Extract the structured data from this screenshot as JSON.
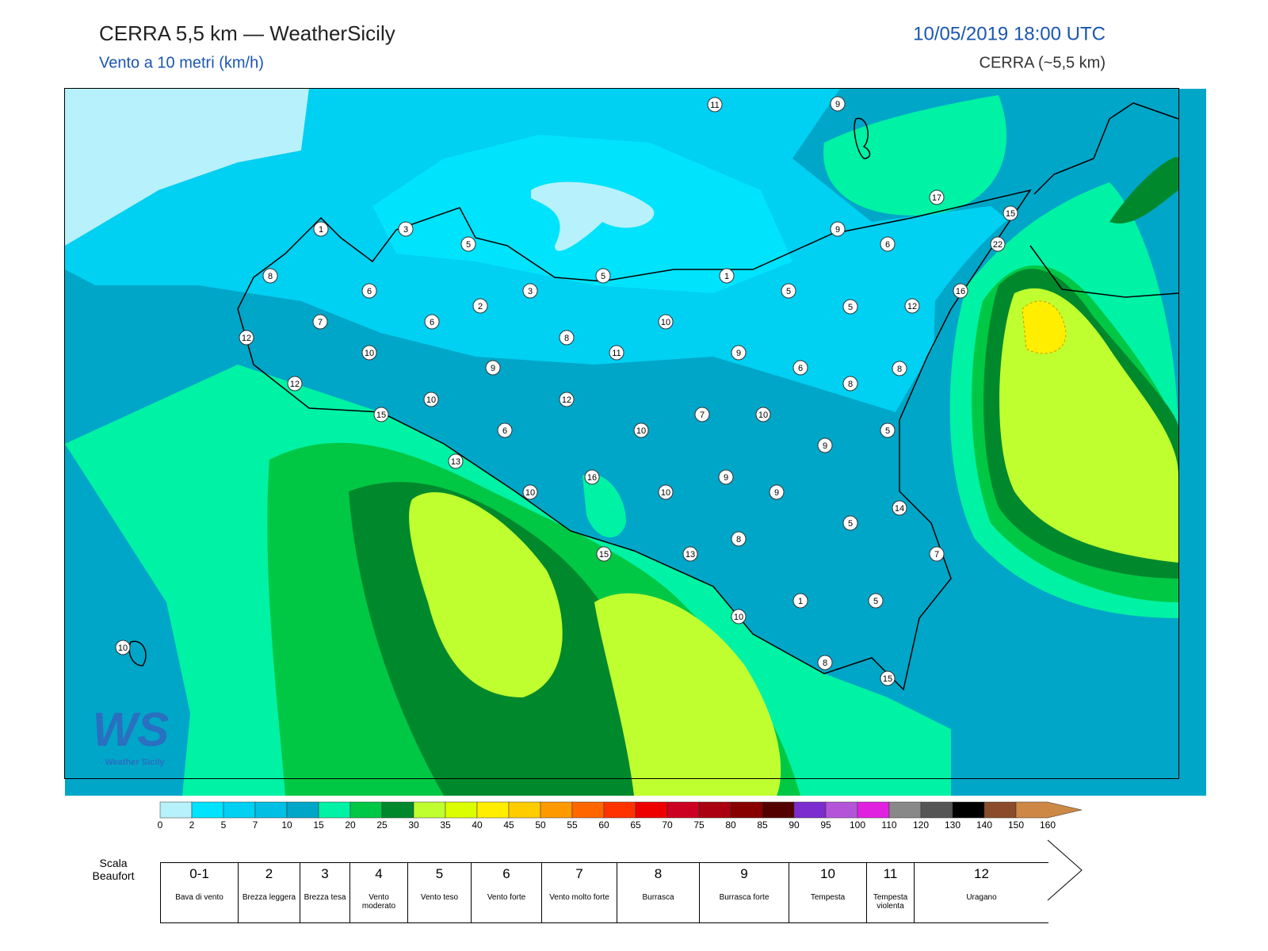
{
  "header": {
    "title": "CERRA 5,5 km — WeatherSicily",
    "subtitle": "Vento a 10 metri (km/h)",
    "date": "10/05/2019 18:00 UTC",
    "model": "CERRA (~5,5 km)"
  },
  "logo": {
    "mark": "WS",
    "text": "Weather Sicily"
  },
  "stations": [
    11,
    9,
    17,
    15,
    22,
    16,
    9,
    6,
    1,
    3,
    5,
    8,
    6,
    3,
    5,
    1,
    5,
    5,
    12,
    2,
    7,
    6,
    10,
    12,
    8,
    10,
    11,
    9,
    9,
    6,
    8,
    8,
    12,
    10,
    12,
    15,
    7,
    10,
    6,
    10,
    5,
    9,
    13,
    16,
    9,
    10,
    10,
    9,
    14,
    5,
    8,
    15,
    13,
    7,
    1,
    5,
    10,
    10,
    8,
    15
  ],
  "colorbar": {
    "ticks": [
      0,
      2,
      5,
      7,
      10,
      15,
      20,
      25,
      30,
      35,
      40,
      45,
      50,
      55,
      60,
      65,
      70,
      75,
      80,
      85,
      90,
      95,
      100,
      110,
      120,
      130,
      140,
      150,
      160
    ],
    "colors": [
      "#b7f1fb",
      "#00e3fd",
      "#00d0f2",
      "#00bfe3",
      "#00a6c8",
      "#00f2a4",
      "#00c844",
      "#00892c",
      "#bfff30",
      "#dcff00",
      "#ffee00",
      "#ffcc00",
      "#ff9900",
      "#ff6600",
      "#ff3300",
      "#ee0000",
      "#cc0022",
      "#aa0011",
      "#880000",
      "#550000",
      "#7d2ccf",
      "#b455d9",
      "#e022e0",
      "#888888",
      "#555555",
      "#000000",
      "#8b4c2b",
      "#cc8844"
    ]
  },
  "beaufort": {
    "title": "Scala Beaufort",
    "levels": [
      {
        "force": "0-1",
        "label": "Bava di vento"
      },
      {
        "force": 2,
        "label": "Brezza leggera"
      },
      {
        "force": 3,
        "label": "Brezza tesa"
      },
      {
        "force": 4,
        "label": "Vento moderato"
      },
      {
        "force": 5,
        "label": "Vento teso"
      },
      {
        "force": 6,
        "label": "Vento forte"
      },
      {
        "force": 7,
        "label": "Vento molto forte"
      },
      {
        "force": 8,
        "label": "Burrasca"
      },
      {
        "force": 9,
        "label": "Burrasca forte"
      },
      {
        "force": 10,
        "label": "Tempesta"
      },
      {
        "force": 11,
        "label": "Tempesta violenta"
      },
      {
        "force": 12,
        "label": "Uragano"
      }
    ]
  }
}
